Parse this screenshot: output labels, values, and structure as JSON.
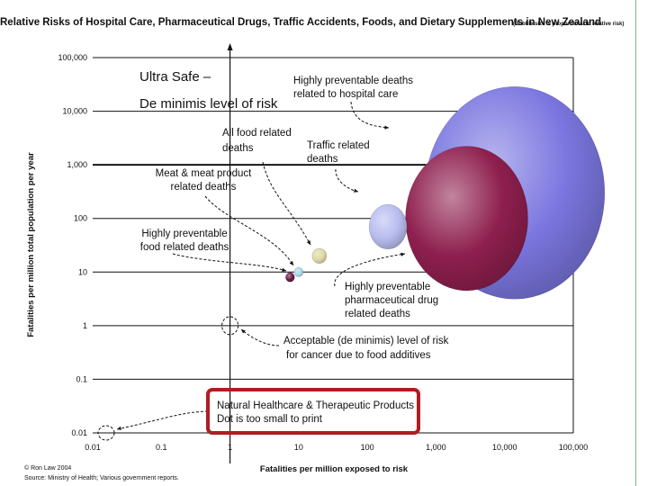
{
  "colors": {
    "hospital": "#7b76e0",
    "pharma": "#8e1f4e",
    "traffic": "#b8bdf0",
    "all_food": "#ddd9a6",
    "meat": "#aadcec",
    "prev_food": "#6e1b47",
    "highlight": "#b11c22"
  },
  "chart_data": {
    "type": "scatter",
    "subtype": "bubble",
    "title": "Relative Risks of Hospital Care, Pharmaceutical Drugs, Traffic Accidents, Foods, and Dietary Supplements in New Zealand",
    "subtitle": "(Bubble size is proportional to relative risk)",
    "xlabel": "Fatalities per million exposed to risk",
    "ylabel": "Fatalities per million total population per year",
    "xscale": "log",
    "yscale": "log",
    "xlim": [
      0.01,
      100000
    ],
    "ylim": [
      0.01,
      100000
    ],
    "x_ticks": [
      "0.01",
      "0.1",
      "1",
      "10",
      "100",
      "1,000",
      "10,000",
      "100,000"
    ],
    "y_ticks": [
      "0.01",
      "0.1",
      "1",
      "10",
      "100",
      "1,000",
      "10,000",
      "100,000"
    ],
    "grid": "horizontal",
    "points": [
      {
        "key": "hospital",
        "x": 14000,
        "y": 300,
        "size": 1.0
      },
      {
        "key": "pharma",
        "x": 2800,
        "y": 100,
        "size": 0.68
      },
      {
        "key": "traffic",
        "x": 200,
        "y": 70,
        "size": 0.21
      },
      {
        "key": "all_food",
        "x": 20,
        "y": 20,
        "size": 0.08
      },
      {
        "key": "meat",
        "x": 10,
        "y": 10,
        "size": 0.05
      },
      {
        "key": "prev_food",
        "x": 7.5,
        "y": 8,
        "size": 0.05
      }
    ],
    "annotations": [
      {
        "key": "ultra_safe",
        "lines": [
          "Ultra Safe –",
          "De minimis level of risk"
        ]
      },
      {
        "key": "hospital",
        "lines": [
          "Highly preventable deaths",
          "related to hospital care"
        ]
      },
      {
        "key": "all_food",
        "lines": [
          "All food related",
          "deaths"
        ]
      },
      {
        "key": "traffic",
        "lines": [
          "Traffic related",
          "deaths"
        ]
      },
      {
        "key": "meat",
        "lines": [
          "Meat & meat product",
          "related deaths"
        ]
      },
      {
        "key": "prev_food",
        "lines": [
          "Highly preventable",
          "food related deaths"
        ]
      },
      {
        "key": "pharma",
        "lines": [
          "Highly preventable",
          "pharmaceutical drug",
          "related deaths"
        ]
      },
      {
        "key": "cancer",
        "lines": [
          "Acceptable (de minimis) level of risk",
          "for cancer due to food additives"
        ]
      },
      {
        "key": "natural",
        "lines": [
          "Natural Healthcare & Therapeutic Products",
          "Dot is too small to print"
        ]
      }
    ]
  },
  "credits": {
    "copyright": "© Ron Law 2004",
    "source": "Source: Ministry of Health; Various government reports."
  }
}
